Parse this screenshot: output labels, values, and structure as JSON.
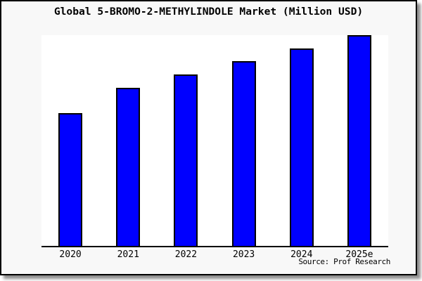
{
  "panel": {
    "background": "#f8f8f8",
    "border_color": "#000000",
    "plot_background": "#ffffff"
  },
  "chart_data": {
    "type": "bar",
    "title": "Global 5-BROMO-2-METHYLINDOLE Market (Million USD)",
    "categories": [
      "2020",
      "2021",
      "2022",
      "2023",
      "2024",
      "2025e"
    ],
    "values": [
      62.9,
      75.1,
      81.5,
      87.8,
      93.8,
      100
    ],
    "value_scale": "relative height, % of tallest bar (no y-axis or value labels shown)",
    "xlabel": "",
    "ylabel": "",
    "ylim": [
      0,
      100
    ],
    "grid": false,
    "legend": false,
    "bar_color": "#0000ff",
    "bar_border_color": "#000000",
    "axis_color": "#000000",
    "source": "Source: Prof Research"
  }
}
